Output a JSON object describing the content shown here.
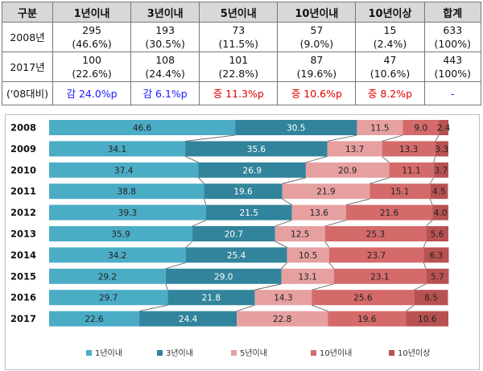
{
  "table": {
    "headers": [
      "구분",
      "1년이내",
      "3년이내",
      "5년이내",
      "10년이내",
      "10년이상",
      "합계"
    ],
    "rows": [
      {
        "label": "2008년",
        "cells": [
          [
            "295",
            "(46.6%)"
          ],
          [
            "193",
            "(30.5%)"
          ],
          [
            "73",
            "(11.5%)"
          ],
          [
            "57",
            "(9.0%)"
          ],
          [
            "15",
            "(2.4%)"
          ],
          [
            "633",
            "(100%)"
          ]
        ]
      },
      {
        "label": "2017년",
        "cells": [
          [
            "100",
            "(22.6%)"
          ],
          [
            "108",
            "(24.4%)"
          ],
          [
            "101",
            "(22.8%)"
          ],
          [
            "87",
            "(19.6%)"
          ],
          [
            "47",
            "(10.6%)"
          ],
          [
            "443",
            "(100%)"
          ]
        ]
      }
    ],
    "comparison": {
      "label": "('08대비)",
      "cells": [
        "감 24.0%p",
        "감 6.1%p",
        "증 11.3%p",
        "증 10.6%p",
        "증 8.2%p",
        "-"
      ],
      "colors": [
        "#1a1aff",
        "#1a1aff",
        "#e00000",
        "#e00000",
        "#e00000",
        "#1a1aff"
      ]
    }
  },
  "chart_data": {
    "type": "bar",
    "stacked": true,
    "orientation": "horizontal",
    "categories": [
      "2008",
      "2009",
      "2010",
      "2011",
      "2012",
      "2013",
      "2014",
      "2015",
      "2016",
      "2017"
    ],
    "series": [
      {
        "name": "1년이내",
        "color": "#4bacc6",
        "values": [
          46.6,
          34.1,
          37.4,
          38.8,
          39.3,
          35.9,
          34.2,
          29.2,
          29.7,
          22.6
        ]
      },
      {
        "name": "3년이내",
        "color": "#31849b",
        "values": [
          30.5,
          35.6,
          26.9,
          19.6,
          21.5,
          20.7,
          25.4,
          29.0,
          21.8,
          24.4
        ]
      },
      {
        "name": "5년이내",
        "color": "#e6a0a0",
        "values": [
          11.5,
          13.7,
          20.9,
          21.9,
          13.6,
          12.5,
          10.5,
          13.1,
          14.3,
          22.8
        ]
      },
      {
        "name": "10년이내",
        "color": "#d46a6a",
        "values": [
          9.0,
          13.3,
          11.1,
          15.1,
          21.6,
          25.3,
          23.7,
          23.1,
          25.6,
          19.6
        ]
      },
      {
        "name": "10년이상",
        "color": "#b85252",
        "values": [
          2.4,
          3.3,
          3.7,
          4.5,
          4.0,
          5.6,
          6.3,
          5.7,
          8.5,
          10.6
        ]
      }
    ],
    "xlim": [
      0,
      100
    ],
    "legend": "bottom"
  }
}
